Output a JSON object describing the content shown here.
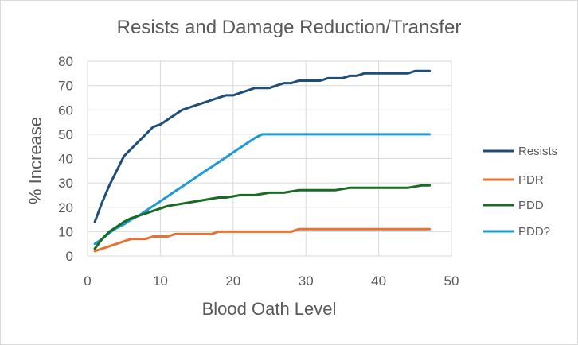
{
  "chart_data": {
    "type": "line",
    "title": "Resists and Damage Reduction/Transfer",
    "xlabel": "Blood Oath Level",
    "ylabel": "% Increase",
    "xlim": [
      0,
      50
    ],
    "ylim": [
      0,
      80
    ],
    "x_ticks": [
      0,
      10,
      20,
      30,
      40,
      50
    ],
    "y_ticks": [
      0,
      10,
      20,
      30,
      40,
      50,
      60,
      70,
      80
    ],
    "grid": true,
    "legend": "right",
    "series": [
      {
        "name": "Resists",
        "color": "#1f4e79",
        "points": [
          [
            1,
            14
          ],
          [
            2,
            22
          ],
          [
            3,
            29
          ],
          [
            4,
            35
          ],
          [
            5,
            41
          ],
          [
            6,
            44
          ],
          [
            7,
            47
          ],
          [
            8,
            50
          ],
          [
            9,
            53
          ],
          [
            10,
            54
          ],
          [
            11,
            56
          ],
          [
            12,
            58
          ],
          [
            13,
            60
          ],
          [
            14,
            61
          ],
          [
            15,
            62
          ],
          [
            16,
            63
          ],
          [
            17,
            64
          ],
          [
            18,
            65
          ],
          [
            19,
            66
          ],
          [
            20,
            66
          ],
          [
            21,
            67
          ],
          [
            22,
            68
          ],
          [
            23,
            69
          ],
          [
            24,
            69
          ],
          [
            25,
            69
          ],
          [
            26,
            70
          ],
          [
            27,
            71
          ],
          [
            28,
            71
          ],
          [
            29,
            72
          ],
          [
            30,
            72
          ],
          [
            31,
            72
          ],
          [
            32,
            72
          ],
          [
            33,
            73
          ],
          [
            34,
            73
          ],
          [
            35,
            73
          ],
          [
            36,
            74
          ],
          [
            37,
            74
          ],
          [
            38,
            75
          ],
          [
            39,
            75
          ],
          [
            40,
            75
          ],
          [
            41,
            75
          ],
          [
            42,
            75
          ],
          [
            43,
            75
          ],
          [
            44,
            75
          ],
          [
            45,
            76
          ],
          [
            46,
            76
          ],
          [
            47,
            76
          ]
        ]
      },
      {
        "name": "PDR",
        "color": "#e97132",
        "points": [
          [
            1,
            2
          ],
          [
            2,
            3
          ],
          [
            3,
            4
          ],
          [
            4,
            5
          ],
          [
            5,
            6
          ],
          [
            6,
            7
          ],
          [
            7,
            7
          ],
          [
            8,
            7
          ],
          [
            9,
            8
          ],
          [
            10,
            8
          ],
          [
            11,
            8
          ],
          [
            12,
            9
          ],
          [
            13,
            9
          ],
          [
            14,
            9
          ],
          [
            15,
            9
          ],
          [
            16,
            9
          ],
          [
            17,
            9
          ],
          [
            18,
            10
          ],
          [
            19,
            10
          ],
          [
            20,
            10
          ],
          [
            21,
            10
          ],
          [
            22,
            10
          ],
          [
            23,
            10
          ],
          [
            24,
            10
          ],
          [
            25,
            10
          ],
          [
            26,
            10
          ],
          [
            27,
            10
          ],
          [
            28,
            10
          ],
          [
            29,
            11
          ],
          [
            30,
            11
          ],
          [
            31,
            11
          ],
          [
            32,
            11
          ],
          [
            33,
            11
          ],
          [
            34,
            11
          ],
          [
            35,
            11
          ],
          [
            36,
            11
          ],
          [
            37,
            11
          ],
          [
            38,
            11
          ],
          [
            39,
            11
          ],
          [
            40,
            11
          ],
          [
            41,
            11
          ],
          [
            42,
            11
          ],
          [
            43,
            11
          ],
          [
            44,
            11
          ],
          [
            45,
            11
          ],
          [
            46,
            11
          ],
          [
            47,
            11
          ]
        ]
      },
      {
        "name": "PDD",
        "color": "#196b24",
        "points": [
          [
            1,
            3
          ],
          [
            2,
            7
          ],
          [
            3,
            10
          ],
          [
            4,
            12
          ],
          [
            5,
            14
          ],
          [
            6,
            15.5
          ],
          [
            7,
            16.5
          ],
          [
            8,
            17.5
          ],
          [
            9,
            18.5
          ],
          [
            10,
            19.5
          ],
          [
            11,
            20.5
          ],
          [
            12,
            21
          ],
          [
            13,
            21.5
          ],
          [
            14,
            22
          ],
          [
            15,
            22.5
          ],
          [
            16,
            23
          ],
          [
            17,
            23.5
          ],
          [
            18,
            24
          ],
          [
            19,
            24
          ],
          [
            20,
            24.5
          ],
          [
            21,
            25
          ],
          [
            22,
            25
          ],
          [
            23,
            25
          ],
          [
            24,
            25.5
          ],
          [
            25,
            26
          ],
          [
            26,
            26
          ],
          [
            27,
            26
          ],
          [
            28,
            26.5
          ],
          [
            29,
            27
          ],
          [
            30,
            27
          ],
          [
            31,
            27
          ],
          [
            32,
            27
          ],
          [
            33,
            27
          ],
          [
            34,
            27
          ],
          [
            35,
            27.5
          ],
          [
            36,
            28
          ],
          [
            37,
            28
          ],
          [
            38,
            28
          ],
          [
            39,
            28
          ],
          [
            40,
            28
          ],
          [
            41,
            28
          ],
          [
            42,
            28
          ],
          [
            43,
            28
          ],
          [
            44,
            28
          ],
          [
            45,
            28.5
          ],
          [
            46,
            29
          ],
          [
            47,
            29
          ]
        ]
      },
      {
        "name": "PDD?",
        "color": "#1e9bd7",
        "points": [
          [
            1,
            5
          ],
          [
            2,
            7
          ],
          [
            3,
            9.5
          ],
          [
            4,
            11.5
          ],
          [
            5,
            13
          ],
          [
            6,
            15
          ],
          [
            7,
            16.5
          ],
          [
            8,
            18.5
          ],
          [
            9,
            20.5
          ],
          [
            10,
            22.5
          ],
          [
            11,
            24.5
          ],
          [
            12,
            26.5
          ],
          [
            13,
            28.5
          ],
          [
            14,
            30.5
          ],
          [
            15,
            32.5
          ],
          [
            16,
            34.5
          ],
          [
            17,
            36.5
          ],
          [
            18,
            38.5
          ],
          [
            19,
            40.5
          ],
          [
            20,
            42.5
          ],
          [
            21,
            44.5
          ],
          [
            22,
            46.5
          ],
          [
            23,
            48.5
          ],
          [
            24,
            50
          ],
          [
            25,
            50
          ],
          [
            26,
            50
          ],
          [
            27,
            50
          ],
          [
            28,
            50
          ],
          [
            29,
            50
          ],
          [
            30,
            50
          ],
          [
            31,
            50
          ],
          [
            32,
            50
          ],
          [
            33,
            50
          ],
          [
            34,
            50
          ],
          [
            35,
            50
          ],
          [
            36,
            50
          ],
          [
            37,
            50
          ],
          [
            38,
            50
          ],
          [
            39,
            50
          ],
          [
            40,
            50
          ],
          [
            41,
            50
          ],
          [
            42,
            50
          ],
          [
            43,
            50
          ],
          [
            44,
            50
          ],
          [
            45,
            50
          ],
          [
            46,
            50
          ],
          [
            47,
            50
          ]
        ]
      }
    ]
  }
}
